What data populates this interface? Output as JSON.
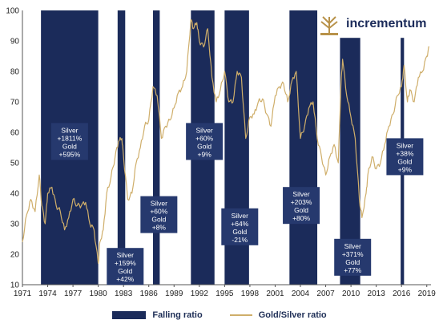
{
  "brand": {
    "name": "incrementum"
  },
  "legend": {
    "falling": "Falling ratio",
    "ratio": "Gold/Silver ratio"
  },
  "colors": {
    "band": "#1b2b5a",
    "line": "#cfae6a",
    "box": "#26396e",
    "logo": "#b8924a"
  },
  "chart_data": {
    "type": "line",
    "title": "",
    "xlabel": "",
    "ylabel": "",
    "xlim": [
      1971,
      2019.5
    ],
    "ylim": [
      10,
      100
    ],
    "yticks": [
      10,
      20,
      30,
      40,
      50,
      60,
      70,
      80,
      90,
      100
    ],
    "xticks": [
      "1971",
      "1974",
      "1977",
      "1980",
      "1983",
      "1986",
      "1989",
      "1992",
      "1995",
      "1998",
      "2001",
      "2004",
      "2007",
      "2010",
      "2013",
      "2016",
      "2019"
    ],
    "bands": [
      {
        "start": 1973.2,
        "end": 1980.0,
        "top": 100,
        "label": [
          "Silver",
          "+1811%",
          "Gold",
          "+595%"
        ],
        "label_center": [
          1976.6,
          57
        ]
      },
      {
        "start": 1982.3,
        "end": 1983.2,
        "top": 100,
        "label": [
          "Silver",
          "+159%",
          "Gold",
          "+42%"
        ],
        "label_center": [
          1983.2,
          16
        ]
      },
      {
        "start": 1986.5,
        "end": 1987.3,
        "top": 100,
        "label": [
          "Silver",
          "+60%",
          "Gold",
          "+8%"
        ],
        "label_center": [
          1987.2,
          33
        ]
      },
      {
        "start": 1991.0,
        "end": 1993.8,
        "top": 100,
        "label": [
          "Silver",
          "+60%",
          "Gold",
          "+9%"
        ],
        "label_center": [
          1992.6,
          57
        ]
      },
      {
        "start": 1995.0,
        "end": 1997.9,
        "top": 100,
        "label": [
          "Silver",
          "+64%",
          "Gold",
          "-21%"
        ],
        "label_center": [
          1996.8,
          29
        ]
      },
      {
        "start": 2002.7,
        "end": 2006.0,
        "top": 100,
        "label": [
          "Silver",
          "+203%",
          "Gold",
          "+80%"
        ],
        "label_center": [
          2004.1,
          36
        ]
      },
      {
        "start": 2008.7,
        "end": 2011.1,
        "top": 91,
        "label": [
          "Silver",
          "+371%",
          "Gold",
          "+77%"
        ],
        "label_center": [
          2010.2,
          19
        ]
      },
      {
        "start": 2015.9,
        "end": 2016.3,
        "top": 91,
        "label": [
          "Silver",
          "+38%",
          "Gold",
          "+9%"
        ],
        "label_center": [
          2016.4,
          52
        ]
      }
    ],
    "series": [
      {
        "x": [
          1971,
          1971.5,
          1972,
          1972.5,
          1973,
          1973.3,
          1973.7,
          1974,
          1974.5,
          1975,
          1975.5,
          1976,
          1976.5,
          1977,
          1977.5,
          1978,
          1978.5,
          1979,
          1979.5,
          1980,
          1980.2,
          1980.6,
          1981,
          1981.5,
          1982,
          1982.4,
          1982.8,
          1983,
          1983.5,
          1984,
          1984.5,
          1985,
          1985.5,
          1986,
          1986.5,
          1987,
          1987.5,
          1988,
          1988.5,
          1989,
          1989.5,
          1990,
          1990.5,
          1991,
          1991.3,
          1991.7,
          1992,
          1992.5,
          1993,
          1993.5,
          1994,
          1994.5,
          1995,
          1995.5,
          1996,
          1996.5,
          1997,
          1997.5,
          1998,
          1998.5,
          1999,
          1999.5,
          2000,
          2000.5,
          2001,
          2001.5,
          2002,
          2002.5,
          2003,
          2003.5,
          2004,
          2004.5,
          2005,
          2005.5,
          2006,
          2006.5,
          2007,
          2007.5,
          2008,
          2008.5,
          2008.8,
          2009,
          2009.5,
          2010,
          2010.5,
          2011,
          2011.3,
          2011.8,
          2012,
          2012.5,
          2013,
          2013.5,
          2014,
          2014.5,
          2015,
          2015.5,
          2016,
          2016.3,
          2016.7,
          2017,
          2017.5,
          2018,
          2018.5,
          2019,
          2019.3
        ],
        "values": [
          24,
          33,
          38,
          34,
          46,
          36,
          30,
          40,
          42,
          36,
          34,
          28,
          32,
          38,
          36,
          36,
          37,
          30,
          28,
          17,
          24,
          28,
          40,
          45,
          52,
          57,
          58,
          52,
          38,
          40,
          50,
          55,
          62,
          64,
          75,
          72,
          58,
          62,
          64,
          68,
          73,
          75,
          80,
          97,
          94,
          96,
          90,
          88,
          94,
          78,
          70,
          74,
          80,
          70,
          70,
          80,
          78,
          58,
          65,
          66,
          70,
          71,
          66,
          62,
          72,
          75,
          76,
          70,
          77,
          80,
          58,
          62,
          68,
          70,
          58,
          52,
          46,
          52,
          56,
          50,
          75,
          84,
          72,
          65,
          58,
          38,
          32,
          40,
          46,
          52,
          48,
          50,
          56,
          62,
          66,
          72,
          75,
          82,
          70,
          74,
          70,
          78,
          80,
          85,
          88
        ]
      }
    ]
  }
}
